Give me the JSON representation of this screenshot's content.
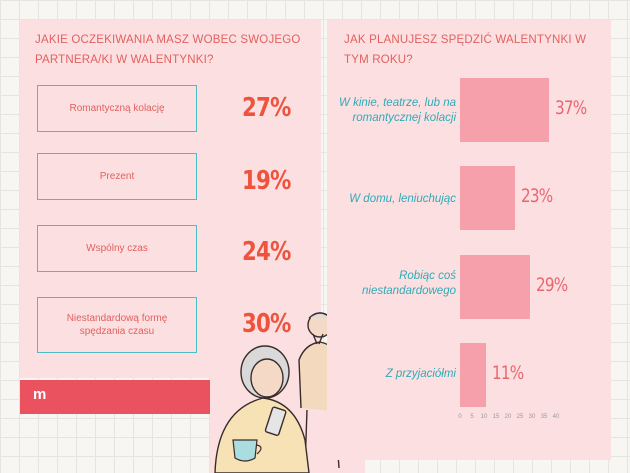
{
  "left_panel": {
    "title_line1": "JAKIE OCZEKIWANIA MASZ WOBEC SWOJEGO",
    "title_line2": "PARTNERA/KI W WALENTYNKI?",
    "items": [
      {
        "label": "Romantyczną kolację",
        "value": "27%"
      },
      {
        "label": "Prezent",
        "value": "19%"
      },
      {
        "label": "Wspólny czas",
        "value": "24%"
      },
      {
        "label": "Niestandardową formę spędzania czasu",
        "value": "30%"
      }
    ]
  },
  "logo": {
    "glyph": "m"
  },
  "chart_data": {
    "type": "bar",
    "orientation": "horizontal",
    "title": "JAK PLANUJESZ SPĘDZIĆ WALENTYNKI W TYM ROKU?",
    "categories": [
      "W kinie, teatrze, lub na romantycznej kolacji",
      "W domu, leniuchując",
      "Robiąc coś niestandardowego",
      "Z przyjaciółmi"
    ],
    "values": [
      37,
      23,
      29,
      11
    ],
    "value_labels": [
      "37%",
      "23%",
      "29%",
      "11%"
    ],
    "xlim": [
      0,
      40
    ],
    "ticks": [
      "0",
      "5",
      "10",
      "15",
      "20",
      "25",
      "30",
      "35",
      "40"
    ],
    "bar_color": "#f6a0ab",
    "label_color": "#2faab8"
  },
  "colors": {
    "accent": "#f0533d",
    "panel": "#fce0e1",
    "box_border": "#4cbcc6",
    "footer_band": "#e9525e"
  }
}
